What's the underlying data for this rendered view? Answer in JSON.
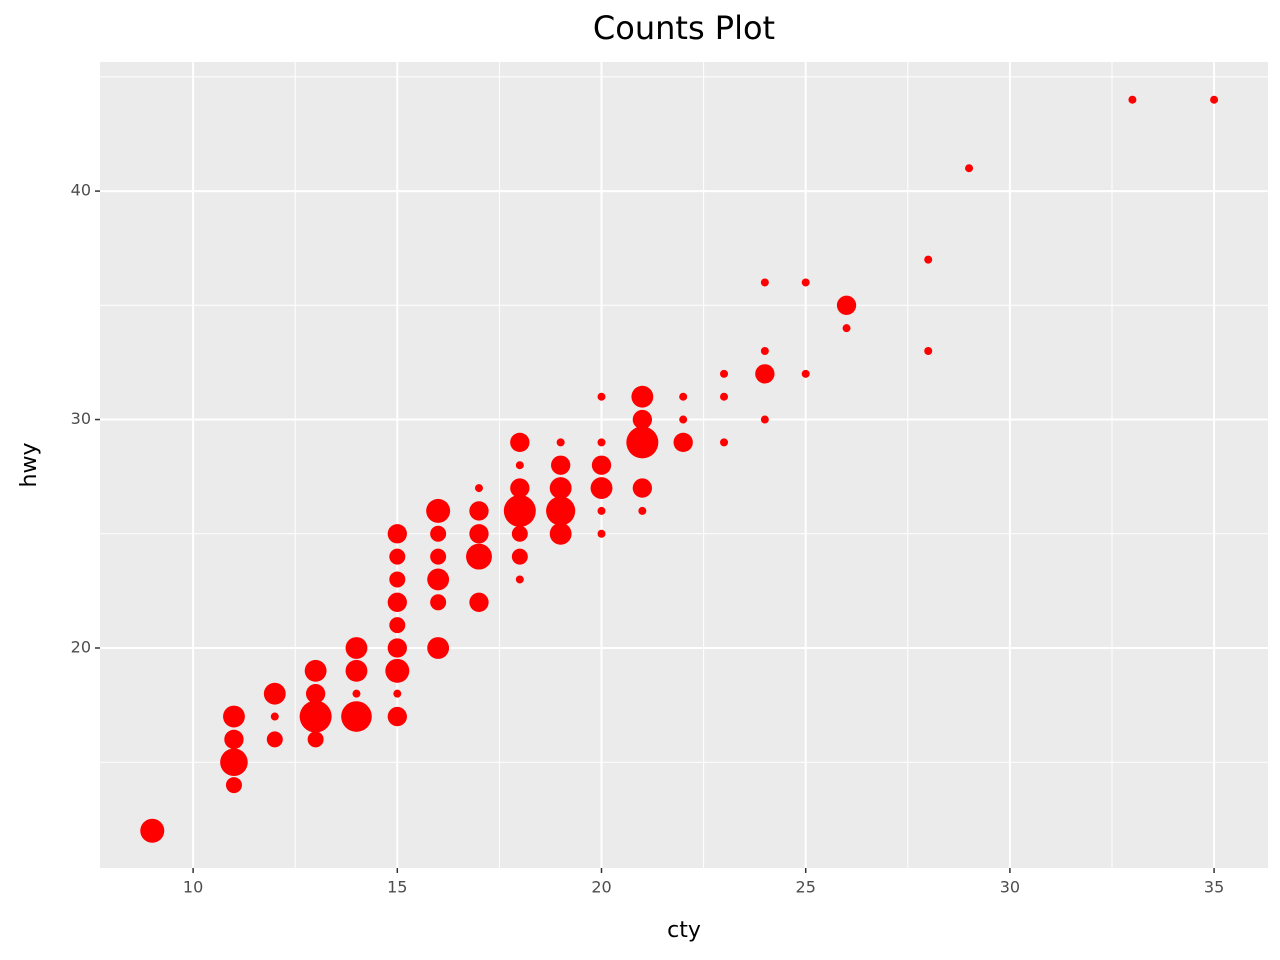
{
  "chart_data": {
    "type": "scatter",
    "title": "Counts Plot",
    "x_label": "cty",
    "y_label": "hwy",
    "color": "#ff0000",
    "grid": true,
    "x": [
      9,
      11,
      11,
      11,
      11,
      12,
      12,
      12,
      13,
      13,
      13,
      13,
      14,
      14,
      14,
      14,
      15,
      15,
      15,
      15,
      15,
      15,
      15,
      15,
      15,
      16,
      16,
      16,
      16,
      16,
      16,
      17,
      17,
      17,
      17,
      17,
      18,
      18,
      18,
      18,
      18,
      18,
      18,
      19,
      19,
      19,
      19,
      19,
      20,
      20,
      20,
      20,
      20,
      20,
      21,
      21,
      21,
      21,
      21,
      22,
      22,
      22,
      23,
      23,
      23,
      24,
      24,
      24,
      24,
      25,
      25,
      26,
      26,
      28,
      28,
      29,
      33,
      35
    ],
    "y": [
      12,
      14,
      15,
      16,
      17,
      16,
      17,
      18,
      16,
      17,
      18,
      19,
      17,
      18,
      19,
      20,
      17,
      18,
      19,
      20,
      21,
      22,
      23,
      24,
      25,
      20,
      22,
      23,
      24,
      25,
      26,
      22,
      24,
      25,
      26,
      27,
      23,
      24,
      25,
      26,
      27,
      28,
      29,
      25,
      26,
      27,
      28,
      29,
      25,
      26,
      27,
      28,
      29,
      31,
      26,
      27,
      29,
      30,
      31,
      29,
      30,
      31,
      29,
      31,
      32,
      30,
      32,
      33,
      36,
      32,
      36,
      34,
      35,
      33,
      37,
      41,
      44,
      44
    ],
    "sizes": [
      5,
      2,
      7,
      3,
      4,
      2,
      1,
      4,
      2,
      10,
      3,
      4,
      9,
      1,
      4,
      4,
      3,
      1,
      5,
      3,
      2,
      3,
      2,
      2,
      3,
      4,
      2,
      4,
      2,
      2,
      5,
      3,
      6,
      3,
      3,
      1,
      1,
      2,
      2,
      10,
      3,
      1,
      3,
      4,
      8,
      4,
      3,
      1,
      1,
      1,
      4,
      3,
      1,
      1,
      1,
      3,
      10,
      3,
      4,
      3,
      1,
      1,
      1,
      1,
      1,
      1,
      3,
      1,
      1,
      1,
      1,
      1,
      3,
      1,
      1,
      1,
      1,
      1
    ],
    "xlim": [
      7.72,
      36.32
    ],
    "xticks": [
      10,
      15,
      20,
      25,
      30,
      35
    ],
    "ylim": [
      10.37,
      45.65
    ],
    "yticks": [
      20,
      30,
      40
    ]
  }
}
